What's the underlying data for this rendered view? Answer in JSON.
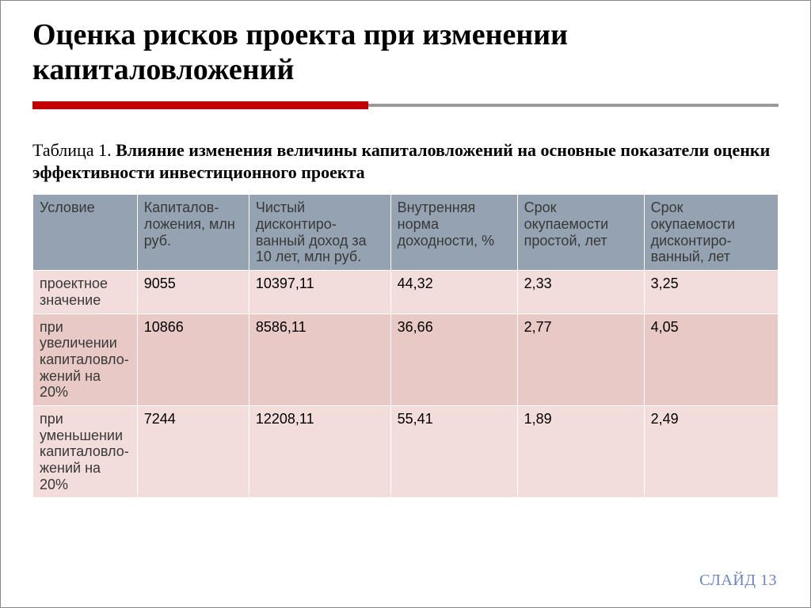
{
  "title": "Оценка рисков проекта при изменении капиталовложений",
  "accent": {
    "red_color": "#c00000",
    "red_width_pct": 45,
    "grey_color": "#9a9a9a"
  },
  "caption": {
    "prefix": "Таблица 1. ",
    "bold": "Влияние изменения величины капиталовложений на основные показатели оценки эффективности инвестиционного проекта"
  },
  "colors": {
    "header_bg": "#94a2b1",
    "row_light": "#f3dddb",
    "row_dark": "#e9c9c5",
    "text": "#383838",
    "slide_num": "#6a84bf"
  },
  "table": {
    "col_widths_pct": [
      14,
      15,
      19,
      17,
      17,
      18
    ],
    "columns": [
      "Условие",
      "Капиталов-ложения, млн руб.",
      "Чистый дисконтиро-ванный доход за 10 лет, млн руб.",
      "Внутренняя норма доходности, %",
      "Срок окупаемости простой, лет",
      "Срок окупаемости дисконтиро-ванный, лет"
    ],
    "rows": [
      {
        "label": "проектное значение",
        "cells": [
          "9055",
          "10397,11",
          "44,32",
          "2,33",
          "3,25"
        ]
      },
      {
        "label": "при увеличении капиталовло-жений на 20%",
        "cells": [
          "10866",
          "8586,11",
          "36,66",
          "2,77",
          "4,05"
        ]
      },
      {
        "label": "при уменьшении капиталовло-жений на 20%",
        "cells": [
          "7244",
          "12208,11",
          "55,41",
          "1,89",
          "2,49"
        ]
      }
    ]
  },
  "slide_number": "СЛАЙД 13"
}
